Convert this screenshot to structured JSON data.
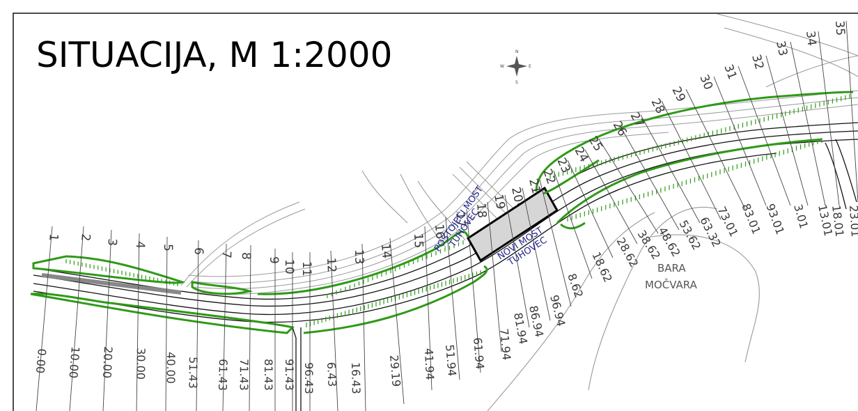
{
  "title": "SITUACIJA, M 1:2000",
  "compass": {
    "n": "N",
    "s": "S",
    "e": "E",
    "w": "W"
  },
  "labels": {
    "old_bridge_line1": "POSTOJEĆI MOST",
    "old_bridge_line2": "TUHOVEC",
    "new_bridge_line1": "NOVI MOST",
    "new_bridge_line2": "TUHOVEC",
    "area_line1": "BARA",
    "area_line2": "MOČVARA"
  },
  "stations": [
    "1",
    "2",
    "3",
    "4",
    "5",
    "6",
    "7",
    "8",
    "9",
    "10",
    "11",
    "12",
    "13",
    "14",
    "15",
    "16",
    "17",
    "18",
    "19",
    "20",
    "21",
    "22",
    "23",
    "24",
    "25",
    "26",
    "27",
    "28",
    "29",
    "30",
    "31",
    "32",
    "33",
    "34",
    "35"
  ],
  "distances": [
    "0.00",
    "10.00",
    "20.00",
    "30.00",
    "40.00",
    "51.43",
    "61.43",
    "71.43",
    "81.43",
    "91.43",
    "96.43",
    "6.43",
    "16.43",
    "29.19",
    "41.94",
    "51.94",
    "61.94",
    "71.94",
    "81.94",
    "86.94",
    "96.94",
    "8.62",
    "18.62",
    "28.62",
    "38.62",
    "48.62",
    "53.62",
    "63.32",
    "73.01",
    "83.01",
    "93.01",
    "3.01",
    "13.01",
    "18.01",
    "23.01"
  ],
  "colors": {
    "embankment": "#2e9a16",
    "bridge_label": "#23238e",
    "new_road": "#111111",
    "existing_road": "#9a9a9a"
  }
}
